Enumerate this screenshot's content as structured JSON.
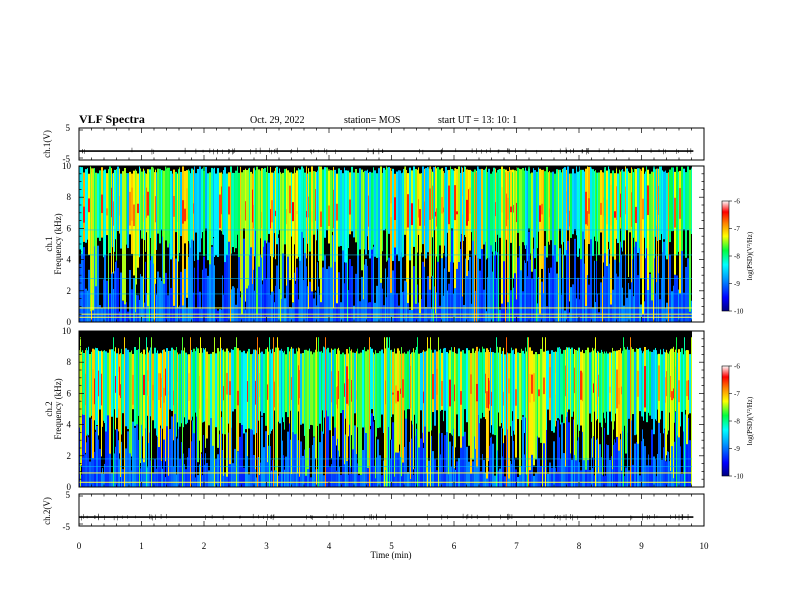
{
  "header": {
    "title": "VLF Spectra",
    "date": "Oct. 29, 2022",
    "station": "station= MOS",
    "start": "start  UT =  13: 10: 1"
  },
  "chart_data": [
    {
      "type": "line",
      "panel": "ch1-waveform",
      "ylabel": "ch.1(V)",
      "ylim": [
        -5,
        5
      ],
      "yticks": [
        "5",
        "-5"
      ],
      "xlim": [
        0,
        10
      ],
      "signal_level": -2.2,
      "series": [
        {
          "x": [
            0,
            9.83
          ],
          "y": [
            -2.2,
            -2.2
          ]
        }
      ]
    },
    {
      "type": "heatmap",
      "panel": "ch1-spectrogram",
      "ylabel": "ch.1\nFrequency (kHz)",
      "xlim": [
        0,
        10
      ],
      "ylim": [
        0,
        10
      ],
      "yticks": [
        "0",
        "2",
        "4",
        "6",
        "8",
        "10"
      ],
      "data_end_min": 9.83,
      "dominant_band_khz": [
        6,
        9.5
      ],
      "constant_lines_khz": [
        0.3,
        0.5,
        0.9,
        1.8,
        2.8,
        4.3,
        5.9
      ],
      "colorbar": {
        "label": "log(PSD)(V²/Hz)",
        "range": [
          -10,
          -6
        ],
        "ticks": [
          "-6",
          "-7",
          "-8",
          "-9",
          "-10"
        ]
      }
    },
    {
      "type": "heatmap",
      "panel": "ch2-spectrogram",
      "ylabel": "ch.2\nFrequency (kHz)",
      "xlim": [
        0,
        10
      ],
      "ylim": [
        0,
        10
      ],
      "yticks": [
        "0",
        "2",
        "4",
        "6",
        "8",
        "10"
      ],
      "data_end_min": 9.83,
      "dominant_band_khz": [
        5,
        8.5
      ],
      "constant_lines_khz": [
        0.3,
        0.9,
        1.3,
        1.8
      ],
      "colorbar": {
        "label": "log(PSD)(V²/Hz)",
        "range": [
          -10,
          -6
        ],
        "ticks": [
          "-6",
          "-7",
          "-8",
          "-9",
          "-10"
        ]
      }
    },
    {
      "type": "line",
      "panel": "ch2-waveform",
      "ylabel": "ch.2(V)",
      "ylim": [
        -5,
        5
      ],
      "yticks": [
        "5",
        "-5"
      ],
      "xlim": [
        0,
        10
      ],
      "signal_level": -2.2,
      "series": [
        {
          "x": [
            0,
            9.83
          ],
          "y": [
            -2.2,
            -2.2
          ]
        }
      ]
    }
  ],
  "xaxis": {
    "label": "Time (min)",
    "ticks": [
      "0",
      "1",
      "2",
      "3",
      "4",
      "5",
      "6",
      "7",
      "8",
      "9",
      "10"
    ]
  },
  "colors": {
    "axis": "#000000",
    "background": "#000000"
  }
}
